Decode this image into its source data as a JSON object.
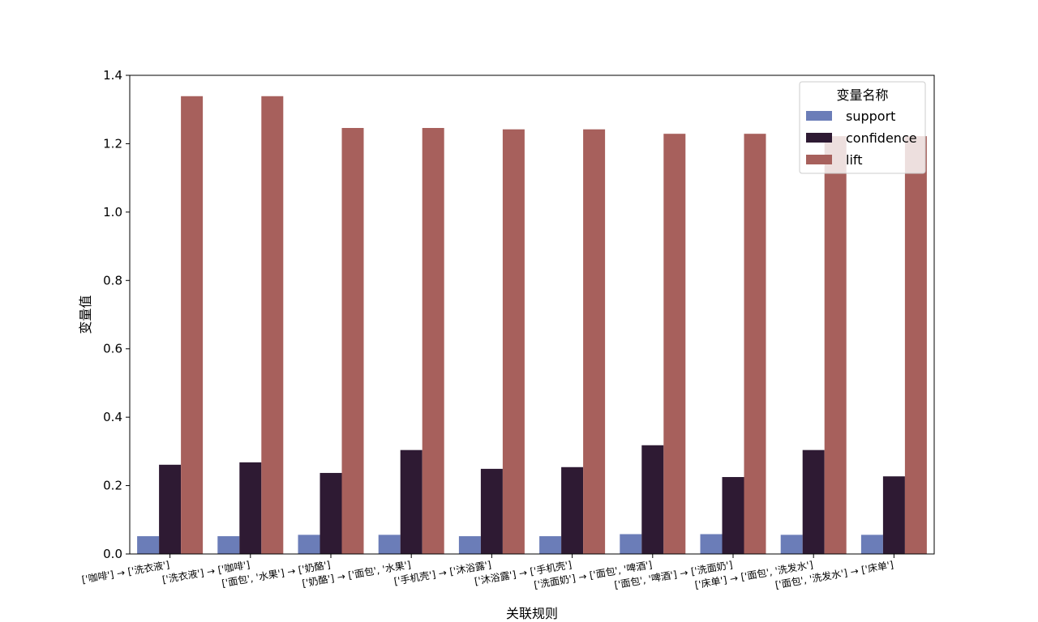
{
  "chart_data": {
    "type": "bar",
    "categories": [
      "['咖啡'] → ['洗衣液']",
      "['洗衣液'] → ['咖啡']",
      "['面包', '水果'] → ['奶酪']",
      "['奶酪'] → ['面包', '水果']",
      "['手机壳'] → ['沐浴露']",
      "['沐浴露'] → ['手机壳']",
      "['洗面奶'] → ['面包', '啤酒']",
      "['面包', '啤酒'] → ['洗面奶']",
      "['床单'] → ['面包', '洗发水']",
      "['面包', '洗发水'] → ['床单']"
    ],
    "series": [
      {
        "name": "support",
        "color": "#6b7db8",
        "values": [
          0.052,
          0.052,
          0.056,
          0.056,
          0.052,
          0.052,
          0.058,
          0.058,
          0.056,
          0.056
        ]
      },
      {
        "name": "confidence",
        "color": "#2e1a33",
        "values": [
          0.261,
          0.268,
          0.237,
          0.304,
          0.249,
          0.254,
          0.318,
          0.225,
          0.304,
          0.227
        ]
      },
      {
        "name": "lift",
        "color": "#a7605c",
        "values": [
          1.339,
          1.339,
          1.246,
          1.246,
          1.242,
          1.242,
          1.229,
          1.229,
          1.222,
          1.222
        ]
      }
    ],
    "xlabel": "关联规则",
    "ylabel": "变量值",
    "ylim": [
      0,
      1.4
    ],
    "yticks": [
      "0.0",
      "0.2",
      "0.4",
      "0.6",
      "0.8",
      "1.0",
      "1.2",
      "1.4"
    ],
    "legend": {
      "title": "变量名称",
      "placement": "top-right"
    },
    "grid": false
  }
}
